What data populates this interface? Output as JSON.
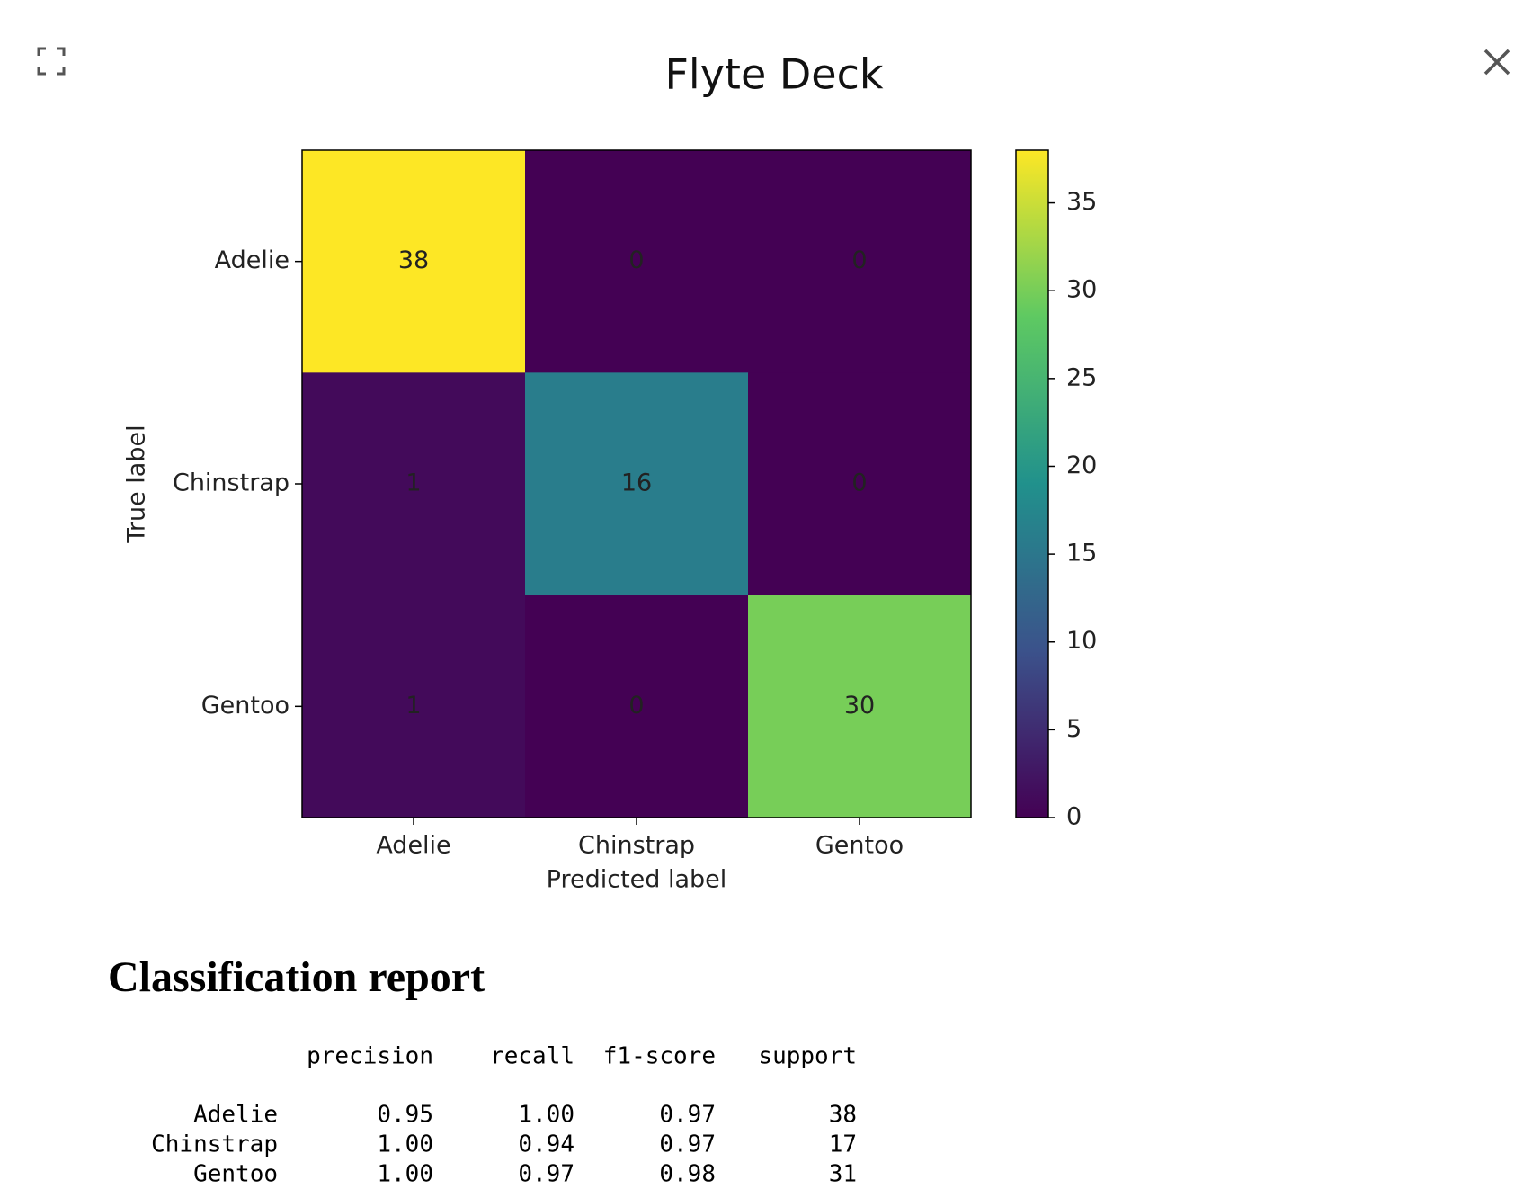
{
  "header": {
    "title": "Flyte Deck"
  },
  "chart_data": {
    "type": "heatmap",
    "colormap": "viridis",
    "x_label": "Predicted label",
    "y_label": "True label",
    "x_categories": [
      "Adelie",
      "Chinstrap",
      "Gentoo"
    ],
    "y_categories": [
      "Adelie",
      "Chinstrap",
      "Gentoo"
    ],
    "values": [
      [
        38,
        0,
        0
      ],
      [
        1,
        16,
        0
      ],
      [
        1,
        0,
        30
      ]
    ],
    "clim": [
      0,
      38
    ],
    "cticks": [
      0,
      5,
      10,
      15,
      20,
      25,
      30,
      35
    ]
  },
  "report": {
    "title": "Classification report",
    "columns": [
      "precision",
      "recall",
      "f1-score",
      "support"
    ],
    "rows": [
      [
        "Adelie",
        "0.95",
        "1.00",
        "0.97",
        38
      ],
      [
        "Chinstrap",
        "1.00",
        "0.94",
        "0.97",
        17
      ],
      [
        "Gentoo",
        "1.00",
        "0.97",
        "0.98",
        31
      ]
    ]
  }
}
